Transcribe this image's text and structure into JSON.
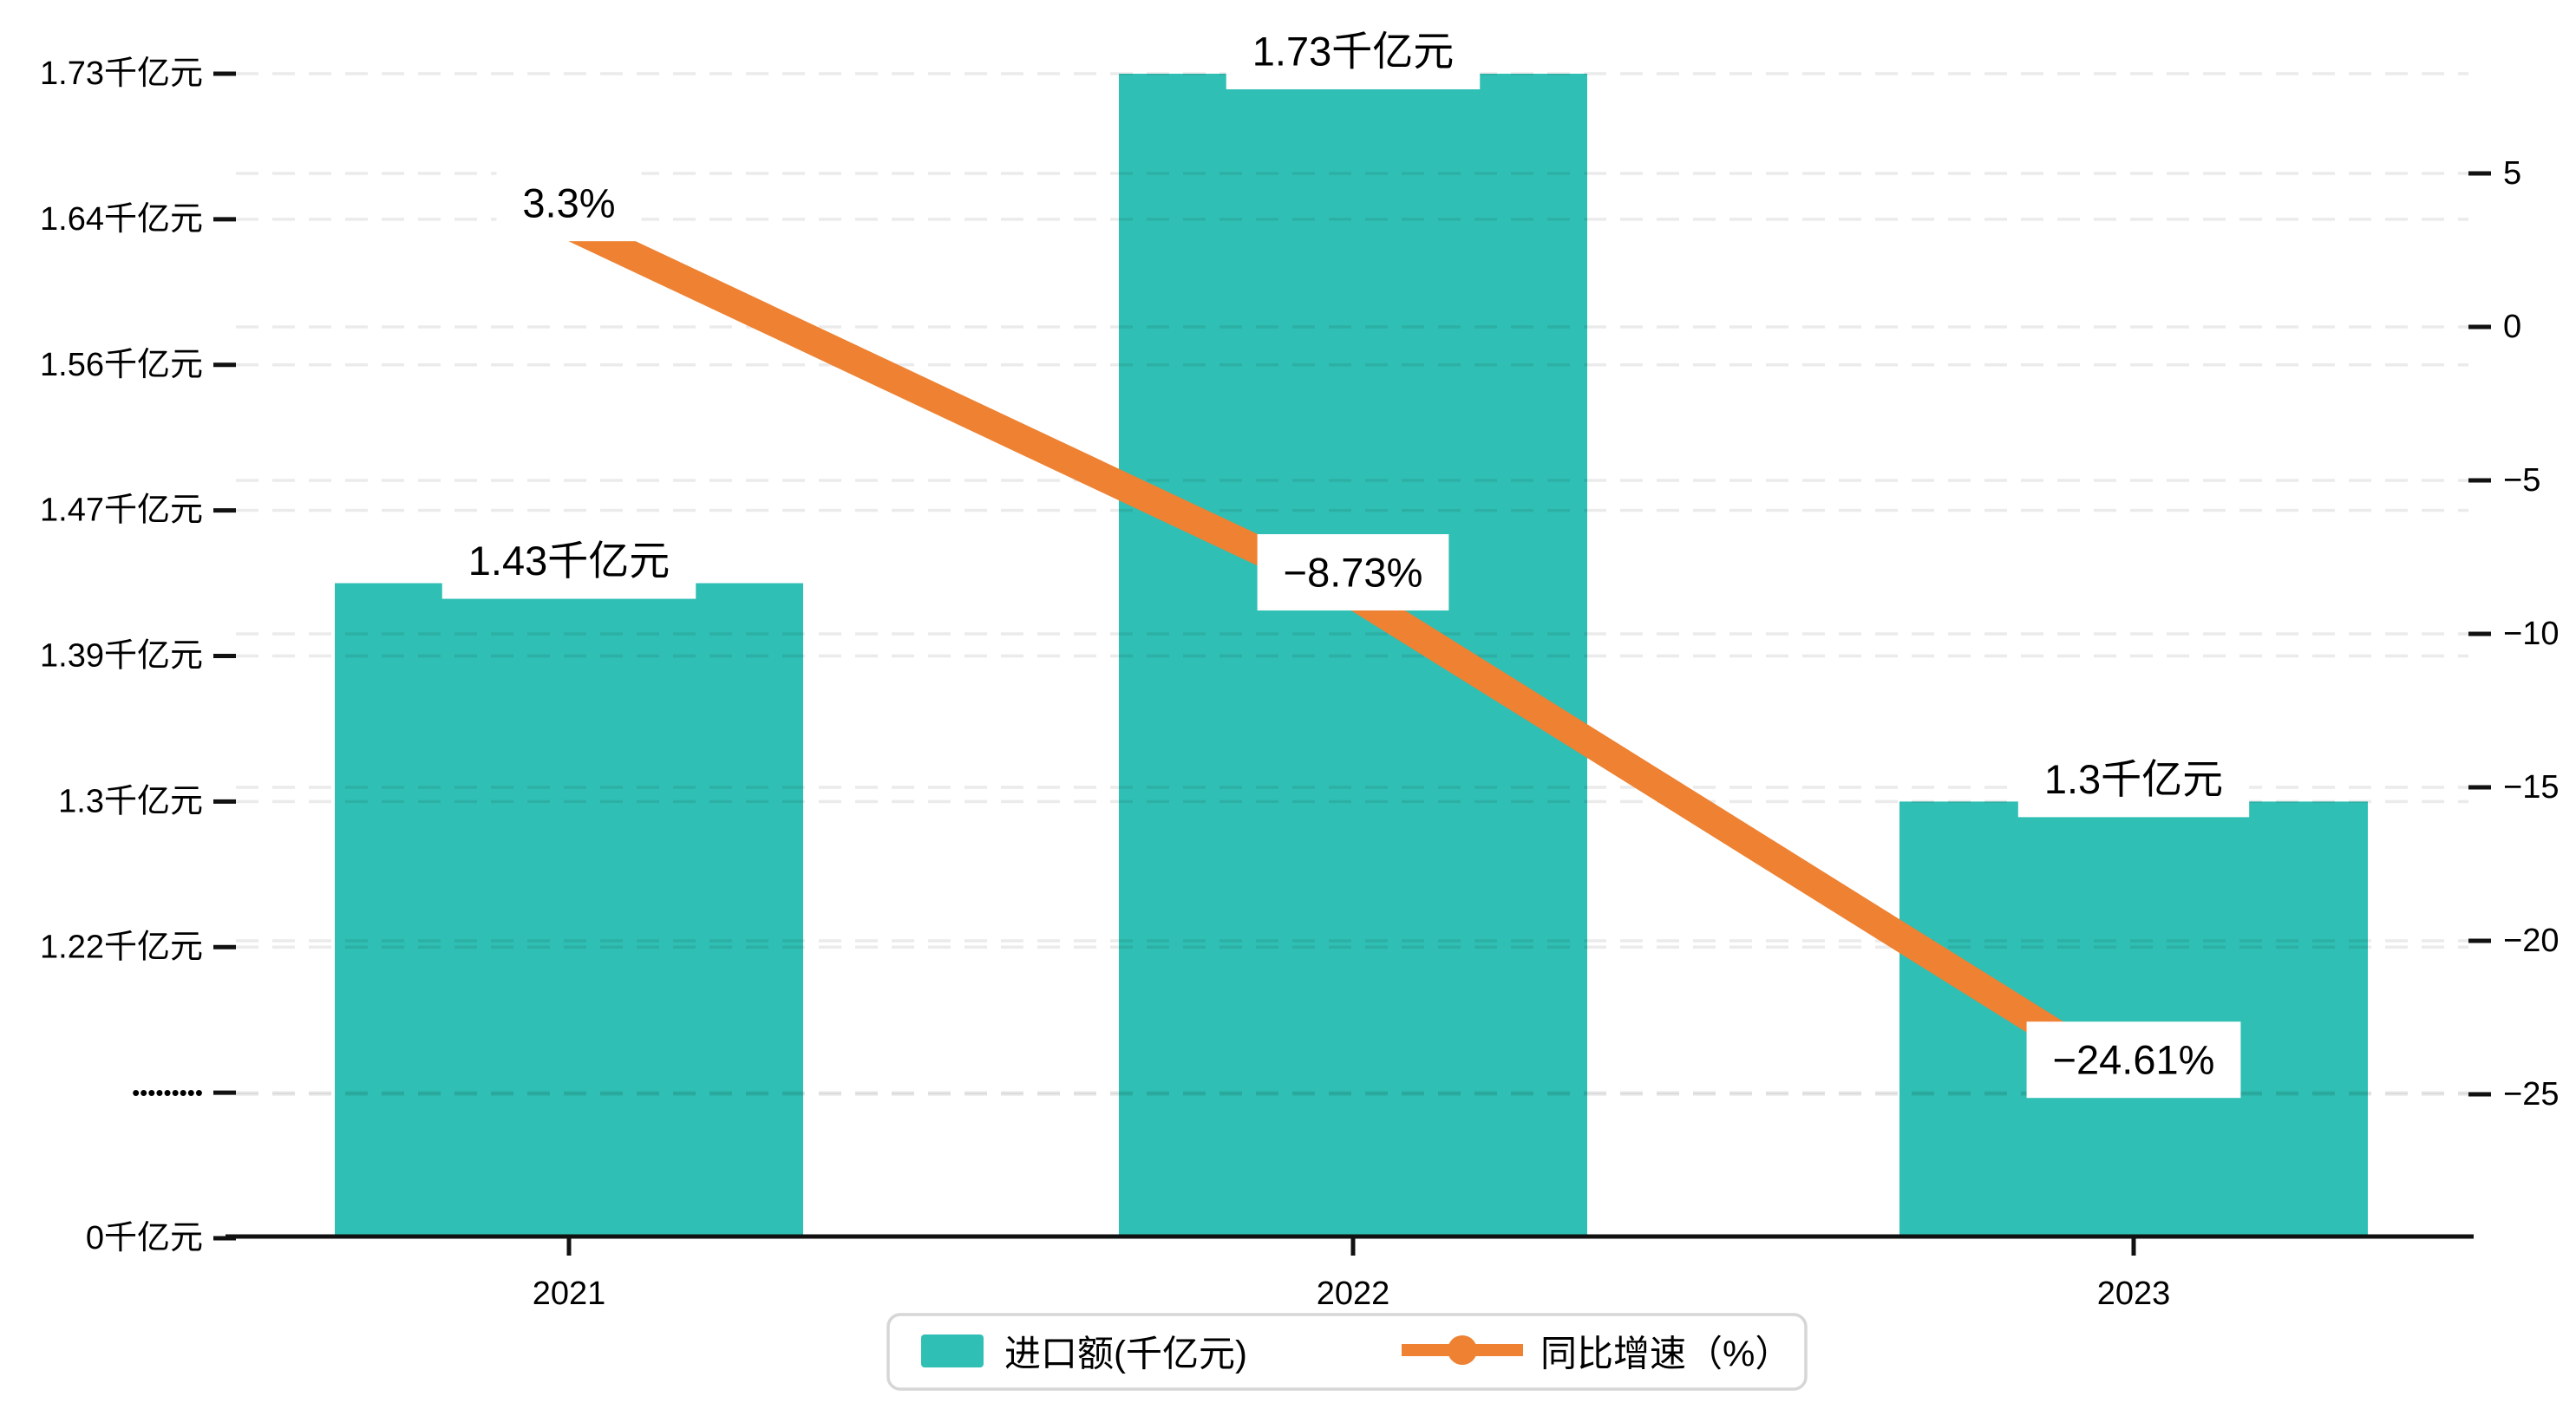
{
  "chart_data": {
    "type": "bar",
    "subtype": "bar+line combo, dual y-axis, broken left axis",
    "categories": [
      "2021",
      "2022",
      "2023"
    ],
    "series": [
      {
        "name": "进口额(千亿元)",
        "type": "bar",
        "unit": "千亿元",
        "values": [
          1.43,
          1.73,
          1.3
        ],
        "labels": [
          "1.43千亿元",
          "1.73千亿元",
          "1.3千亿元"
        ],
        "color": "#30bfb4"
      },
      {
        "name": "同比增速（%）",
        "type": "line",
        "unit": "%",
        "values": [
          3.3,
          -8.73,
          -24.61
        ],
        "labels": [
          "3.3%",
          "−8.73%",
          "−24.61%"
        ],
        "color": "#ee8132"
      }
    ],
    "left_axis": {
      "tick_labels": [
        "1.73千亿元",
        "1.64千亿元",
        "1.56千亿元",
        "1.47千亿元",
        "1.39千亿元",
        "1.3千亿元",
        "1.22千亿元",
        "•••••••••",
        "0千亿元"
      ],
      "tick_values": [
        1.73,
        1.64,
        1.56,
        1.47,
        1.39,
        1.3,
        1.22,
        null,
        0
      ],
      "broken_axis": true
    },
    "right_axis": {
      "tick_labels": [
        "5",
        "0",
        "−5",
        "−10",
        "−15",
        "−20",
        "−25"
      ],
      "tick_values": [
        5,
        0,
        -5,
        -10,
        -15,
        -20,
        -25
      ]
    },
    "grid": "dashed horizontal gridlines at both axes' ticks, drawn over bars",
    "legend_position": "bottom-center",
    "title": "",
    "xlabel": "",
    "ylabel": ""
  },
  "legend": {
    "items": [
      {
        "label": "进口额(千亿元)",
        "color": "#30bfb4",
        "marker": "square"
      },
      {
        "label": "同比增速（%）",
        "color": "#ee8132",
        "marker": "line-dot"
      }
    ]
  },
  "colors": {
    "bar": "#30bfb4",
    "line": "#ee8132",
    "axis": "#111111",
    "grid": "rgba(0,0,0,0.08)",
    "label_text": "#000000",
    "label_box": "#ffffff",
    "legend_border": "#d6d6d6",
    "background": "#ffffff"
  }
}
